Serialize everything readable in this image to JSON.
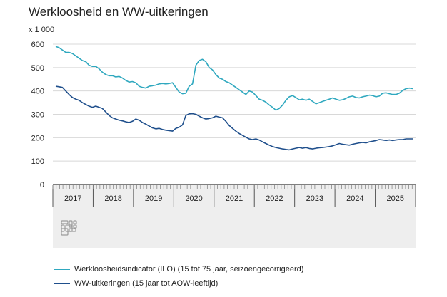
{
  "title": "Werkloosheid en WW-uitkeringen",
  "unit_label": "x 1 000",
  "logo": "cbs-logo-icon",
  "colors": {
    "ilo": "#2fa8bf",
    "ww": "#1f4f8c",
    "grid": "#d8d8d8",
    "axis": "#333333",
    "band": "#eeeeee"
  },
  "chart_data": {
    "type": "line",
    "title": "Werkloosheid en WW-uitkeringen",
    "ylabel": "x 1 000",
    "ylim": [
      0,
      600
    ],
    "yticks": [
      0,
      100,
      200,
      300,
      400,
      500,
      600
    ],
    "grid": true,
    "legend_position": "bottom",
    "x_start_year": 2017,
    "x_end_year": 2025,
    "xtick_labels": [
      "2017",
      "2018",
      "2019",
      "2020",
      "2021",
      "2022",
      "2023",
      "2024",
      "2025"
    ],
    "series": [
      {
        "name": "Werkloosheidsindicator (ILO) (15 tot 75 jaar, seizoengecorrigeerd)",
        "color": "#2fa8bf",
        "values": [
          590,
          585,
          575,
          565,
          565,
          560,
          550,
          540,
          530,
          525,
          510,
          505,
          505,
          495,
          480,
          470,
          465,
          465,
          460,
          462,
          455,
          445,
          438,
          440,
          435,
          420,
          415,
          412,
          420,
          422,
          425,
          430,
          432,
          430,
          432,
          435,
          415,
          395,
          388,
          390,
          420,
          430,
          510,
          530,
          535,
          525,
          500,
          490,
          470,
          455,
          450,
          440,
          435,
          425,
          415,
          405,
          395,
          385,
          400,
          395,
          380,
          365,
          360,
          352,
          340,
          330,
          318,
          325,
          340,
          360,
          375,
          380,
          372,
          362,
          365,
          360,
          365,
          355,
          345,
          350,
          355,
          360,
          365,
          370,
          365,
          360,
          362,
          368,
          375,
          378,
          372,
          370,
          375,
          378,
          382,
          380,
          375,
          378,
          390,
          392,
          388,
          385,
          385,
          390,
          402,
          410,
          412,
          410
        ]
      },
      {
        "name": "WW-uitkeringen (15 jaar tot AOW-leeftijd)",
        "color": "#1f4f8c",
        "values": [
          420,
          418,
          415,
          400,
          385,
          372,
          365,
          360,
          350,
          342,
          335,
          330,
          335,
          330,
          325,
          310,
          295,
          285,
          280,
          275,
          272,
          268,
          265,
          270,
          280,
          275,
          265,
          258,
          250,
          242,
          238,
          240,
          235,
          232,
          230,
          228,
          240,
          245,
          255,
          295,
          302,
          303,
          300,
          292,
          285,
          280,
          282,
          285,
          292,
          288,
          285,
          270,
          252,
          240,
          228,
          218,
          210,
          202,
          195,
          192,
          195,
          190,
          182,
          175,
          168,
          162,
          158,
          155,
          152,
          150,
          148,
          152,
          155,
          158,
          155,
          158,
          154,
          152,
          155,
          157,
          158,
          160,
          162,
          165,
          170,
          175,
          172,
          170,
          168,
          172,
          175,
          178,
          180,
          178,
          182,
          185,
          188,
          192,
          190,
          188,
          190,
          188,
          190,
          192,
          192,
          195,
          195,
          195
        ]
      }
    ]
  }
}
